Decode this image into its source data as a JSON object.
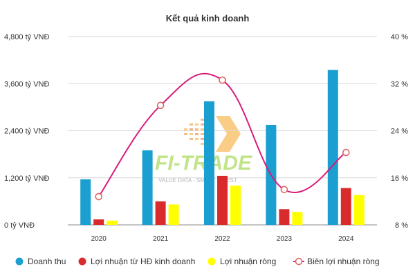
{
  "chart_data": {
    "type": "bar",
    "title": "Kết quả kinh doanh",
    "categories": [
      "2020",
      "2021",
      "2022",
      "2023",
      "2024"
    ],
    "series": [
      {
        "name": "Doanh thu",
        "kind": "bar",
        "axis": "left",
        "color": "#1a9fd0",
        "values": [
          1160,
          1900,
          3150,
          2550,
          3950
        ]
      },
      {
        "name": "Lợi nhuận từ HĐ kinh doanh",
        "kind": "bar",
        "axis": "left",
        "color": "#d92b2b",
        "values": [
          140,
          600,
          1250,
          400,
          940
        ]
      },
      {
        "name": "Lợi nhuận ròng",
        "kind": "bar",
        "axis": "left",
        "color": "#ffff00",
        "values": [
          110,
          520,
          1000,
          330,
          760
        ]
      },
      {
        "name": "Biên lợi nhuận ròng",
        "kind": "line",
        "axis": "right",
        "color": "#d81b7a",
        "values": [
          12.8,
          28.3,
          32.6,
          14.0,
          20.3
        ]
      }
    ],
    "y_left": {
      "min": 0,
      "max": 4800,
      "ticks": [
        0,
        1200,
        2400,
        3600,
        4800
      ],
      "tick_labels": [
        "0 tỷ VNĐ",
        "1,200 tỷ VNĐ",
        "2,400 tỷ VNĐ",
        "3,600 tỷ VNĐ",
        "4,800 tỷ VNĐ"
      ]
    },
    "y_right": {
      "min": 8,
      "max": 40,
      "ticks": [
        8,
        16,
        24,
        32,
        40
      ],
      "tick_labels": [
        "8 %",
        "16 %",
        "24 %",
        "32 %",
        "40 %"
      ]
    },
    "grid": true,
    "legend_position": "bottom"
  },
  "watermark": {
    "text": "FI-TRADE",
    "tagline": "VALUE DATA - SMART INVEST"
  }
}
